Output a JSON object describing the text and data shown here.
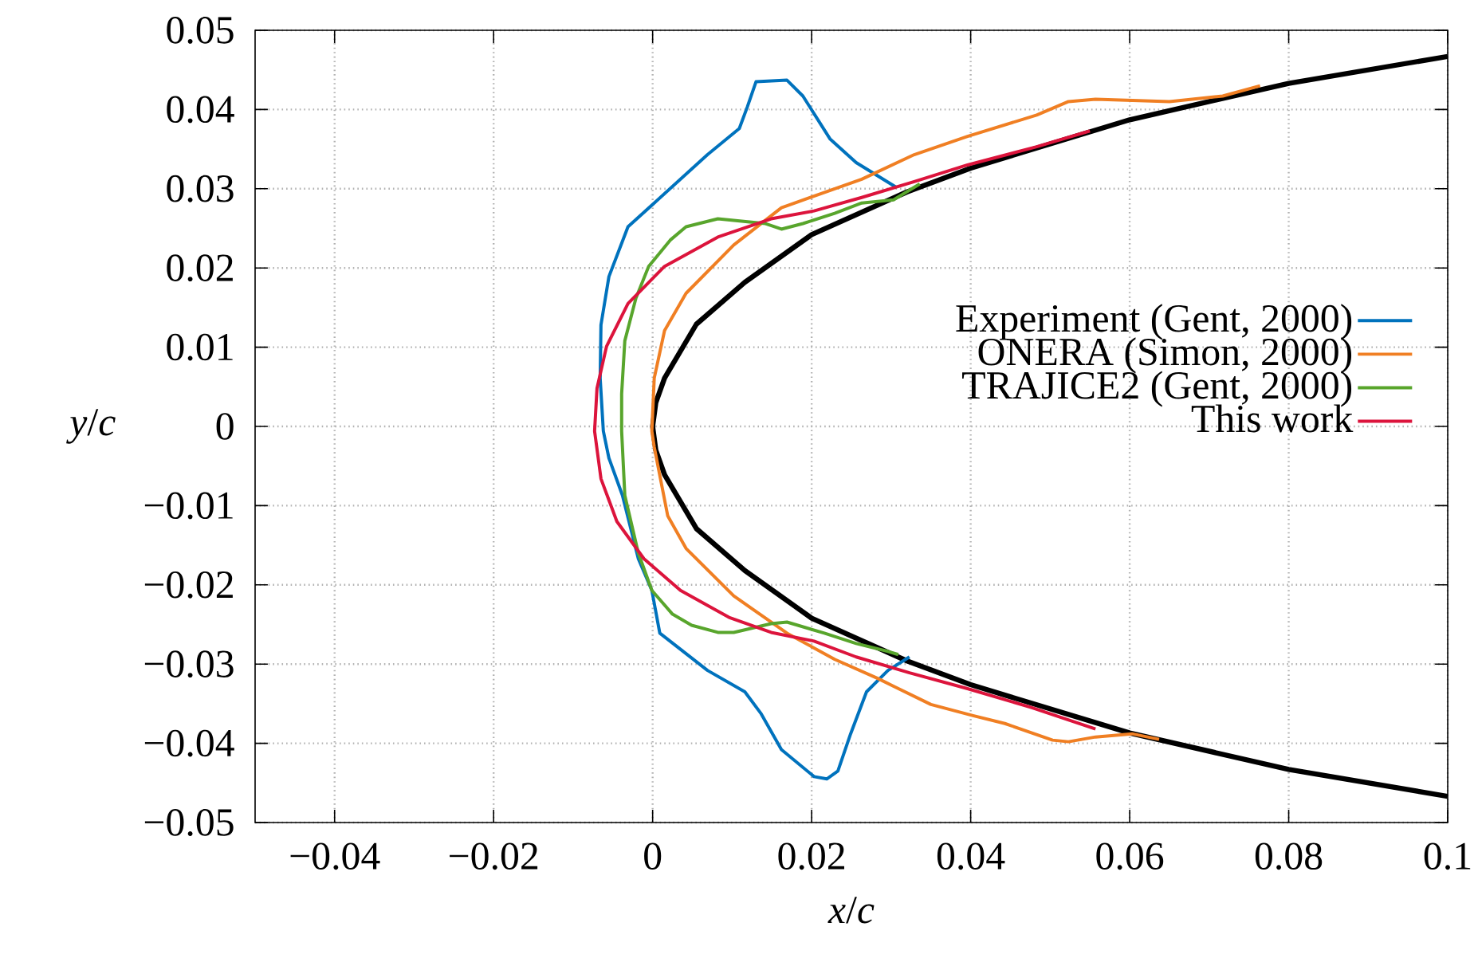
{
  "chart_data": {
    "type": "line",
    "xlabel": "*x*/*c*",
    "ylabel": "*y*/*c*",
    "xlim": [
      -0.05,
      0.1
    ],
    "ylim": [
      -0.05,
      0.05
    ],
    "xticks": [
      {
        "value": -0.04,
        "label": "−0.04"
      },
      {
        "value": -0.02,
        "label": "−0.02"
      },
      0,
      0.02,
      0.04,
      0.06,
      0.08,
      0.1
    ],
    "yticks": [
      {
        "value": -0.05,
        "label": "−0.05"
      },
      {
        "value": -0.04,
        "label": "−0.04"
      },
      {
        "value": -0.03,
        "label": "−0.03"
      },
      {
        "value": -0.02,
        "label": "−0.02"
      },
      {
        "value": -0.01,
        "label": "−0.01"
      },
      0,
      0.01,
      0.02,
      0.03,
      0.04,
      0.05
    ],
    "grid": true,
    "legend": "right",
    "marker": "none",
    "line_style": "solid",
    "series": [
      {
        "name": "Experiment (Gent, 2000)",
        "color": "#0072bd",
        "x": [
          0.0306,
          0.0256,
          0.0223,
          0.0189,
          0.0169,
          0.013,
          0.0119,
          0.0109,
          0.0069,
          0.0002,
          -0.0031,
          -0.0055,
          -0.0065,
          -0.0066,
          -0.0062,
          -0.0055,
          -0.0038,
          -0.0018,
          -0.0001,
          0.0009,
          0.0069,
          0.0116,
          0.0136,
          0.0162,
          0.0203,
          0.0219,
          0.0233,
          0.0249,
          0.0269,
          0.0296,
          0.0323
        ],
        "values": [
          0.0302,
          0.0333,
          0.0363,
          0.0417,
          0.0437,
          0.0435,
          0.0403,
          0.0376,
          0.0343,
          0.0282,
          0.0252,
          0.0189,
          0.0128,
          0.0061,
          -0.0006,
          -0.004,
          -0.0087,
          -0.0167,
          -0.0207,
          -0.0261,
          -0.0308,
          -0.0335,
          -0.0362,
          -0.0408,
          -0.0442,
          -0.0445,
          -0.0435,
          -0.0388,
          -0.0335,
          -0.0308,
          -0.0291
        ]
      },
      {
        "name": "ONERA (Simon, 2000)",
        "color": "#f07f23",
        "x": [
          0.0764,
          0.0717,
          0.065,
          0.0557,
          0.0523,
          0.0483,
          0.0396,
          0.0329,
          0.0263,
          0.0162,
          0.0102,
          0.0042,
          0.0015,
          0.0002,
          -0.0001,
          0.0002,
          0.0019,
          0.0042,
          0.0102,
          0.0169,
          0.0229,
          0.0283,
          0.0303,
          0.035,
          0.0403,
          0.0443,
          0.0503,
          0.0523,
          0.0557,
          0.0603,
          0.0637
        ],
        "values": [
          0.043,
          0.0417,
          0.041,
          0.0413,
          0.041,
          0.0393,
          0.0366,
          0.0343,
          0.0312,
          0.0276,
          0.0229,
          0.0168,
          0.0121,
          0.0061,
          -0.0006,
          -0.0026,
          -0.0113,
          -0.0154,
          -0.0214,
          -0.0261,
          -0.0294,
          -0.0318,
          -0.0328,
          -0.0351,
          -0.0365,
          -0.0375,
          -0.0396,
          -0.0398,
          -0.0392,
          -0.0388,
          -0.0395
        ]
      },
      {
        "name": "TRAJICE2 (Gent, 2000)",
        "color": "#58a52c",
        "x": [
          0.0336,
          0.0303,
          0.0263,
          0.0229,
          0.0189,
          0.0162,
          0.0142,
          0.0082,
          0.0042,
          0.0022,
          -0.0005,
          -0.0021,
          -0.0035,
          -0.0039,
          -0.0039,
          -0.0035,
          -0.0018,
          -0.0001,
          0.0025,
          0.0049,
          0.0082,
          0.0102,
          0.0149,
          0.0169,
          0.0216,
          0.0256,
          0.0296,
          0.0309
        ],
        "values": [
          0.0306,
          0.0286,
          0.0282,
          0.0269,
          0.0256,
          0.0249,
          0.0256,
          0.0262,
          0.0252,
          0.0235,
          0.0202,
          0.0162,
          0.0108,
          0.0041,
          -0.0006,
          -0.0087,
          -0.016,
          -0.0207,
          -0.0237,
          -0.0251,
          -0.026,
          -0.026,
          -0.0249,
          -0.0247,
          -0.0261,
          -0.0274,
          -0.0284,
          -0.0288
        ]
      },
      {
        "name": "This work",
        "color": "#dc143c",
        "x": [
          0.055,
          0.0483,
          0.0396,
          0.0329,
          0.0263,
          0.0203,
          0.0149,
          0.0082,
          0.0015,
          -0.0031,
          -0.0058,
          -0.007,
          -0.0073,
          -0.0065,
          -0.0045,
          -0.0011,
          0.0035,
          0.0096,
          0.0149,
          0.0203,
          0.0256,
          0.0323,
          0.0396,
          0.0477,
          0.0557
        ],
        "values": [
          0.0373,
          0.0353,
          0.033,
          0.0309,
          0.0289,
          0.0272,
          0.0262,
          0.0239,
          0.0202,
          0.0155,
          0.0101,
          0.0048,
          -0.0006,
          -0.0066,
          -0.012,
          -0.0167,
          -0.0207,
          -0.0241,
          -0.026,
          -0.0271,
          -0.0291,
          -0.0311,
          -0.0331,
          -0.0355,
          -0.0382
        ]
      },
      {
        "color": "#000000",
        "x": [
          0.1,
          0.08,
          0.06,
          0.04,
          0.032,
          0.02,
          0.0116,
          0.0055,
          0.0015,
          0.0004,
          0,
          0.0004,
          0.0015,
          0.0055,
          0.0116,
          0.02,
          0.032,
          0.04,
          0.06,
          0.08,
          0.1
        ],
        "values": [
          0.0467,
          0.0433,
          0.0387,
          0.0326,
          0.0296,
          0.0242,
          0.0182,
          0.0129,
          0.0061,
          0.003,
          0,
          -0.003,
          -0.0061,
          -0.0129,
          -0.0182,
          -0.0242,
          -0.0296,
          -0.0326,
          -0.0387,
          -0.0433,
          -0.0467
        ]
      }
    ]
  }
}
